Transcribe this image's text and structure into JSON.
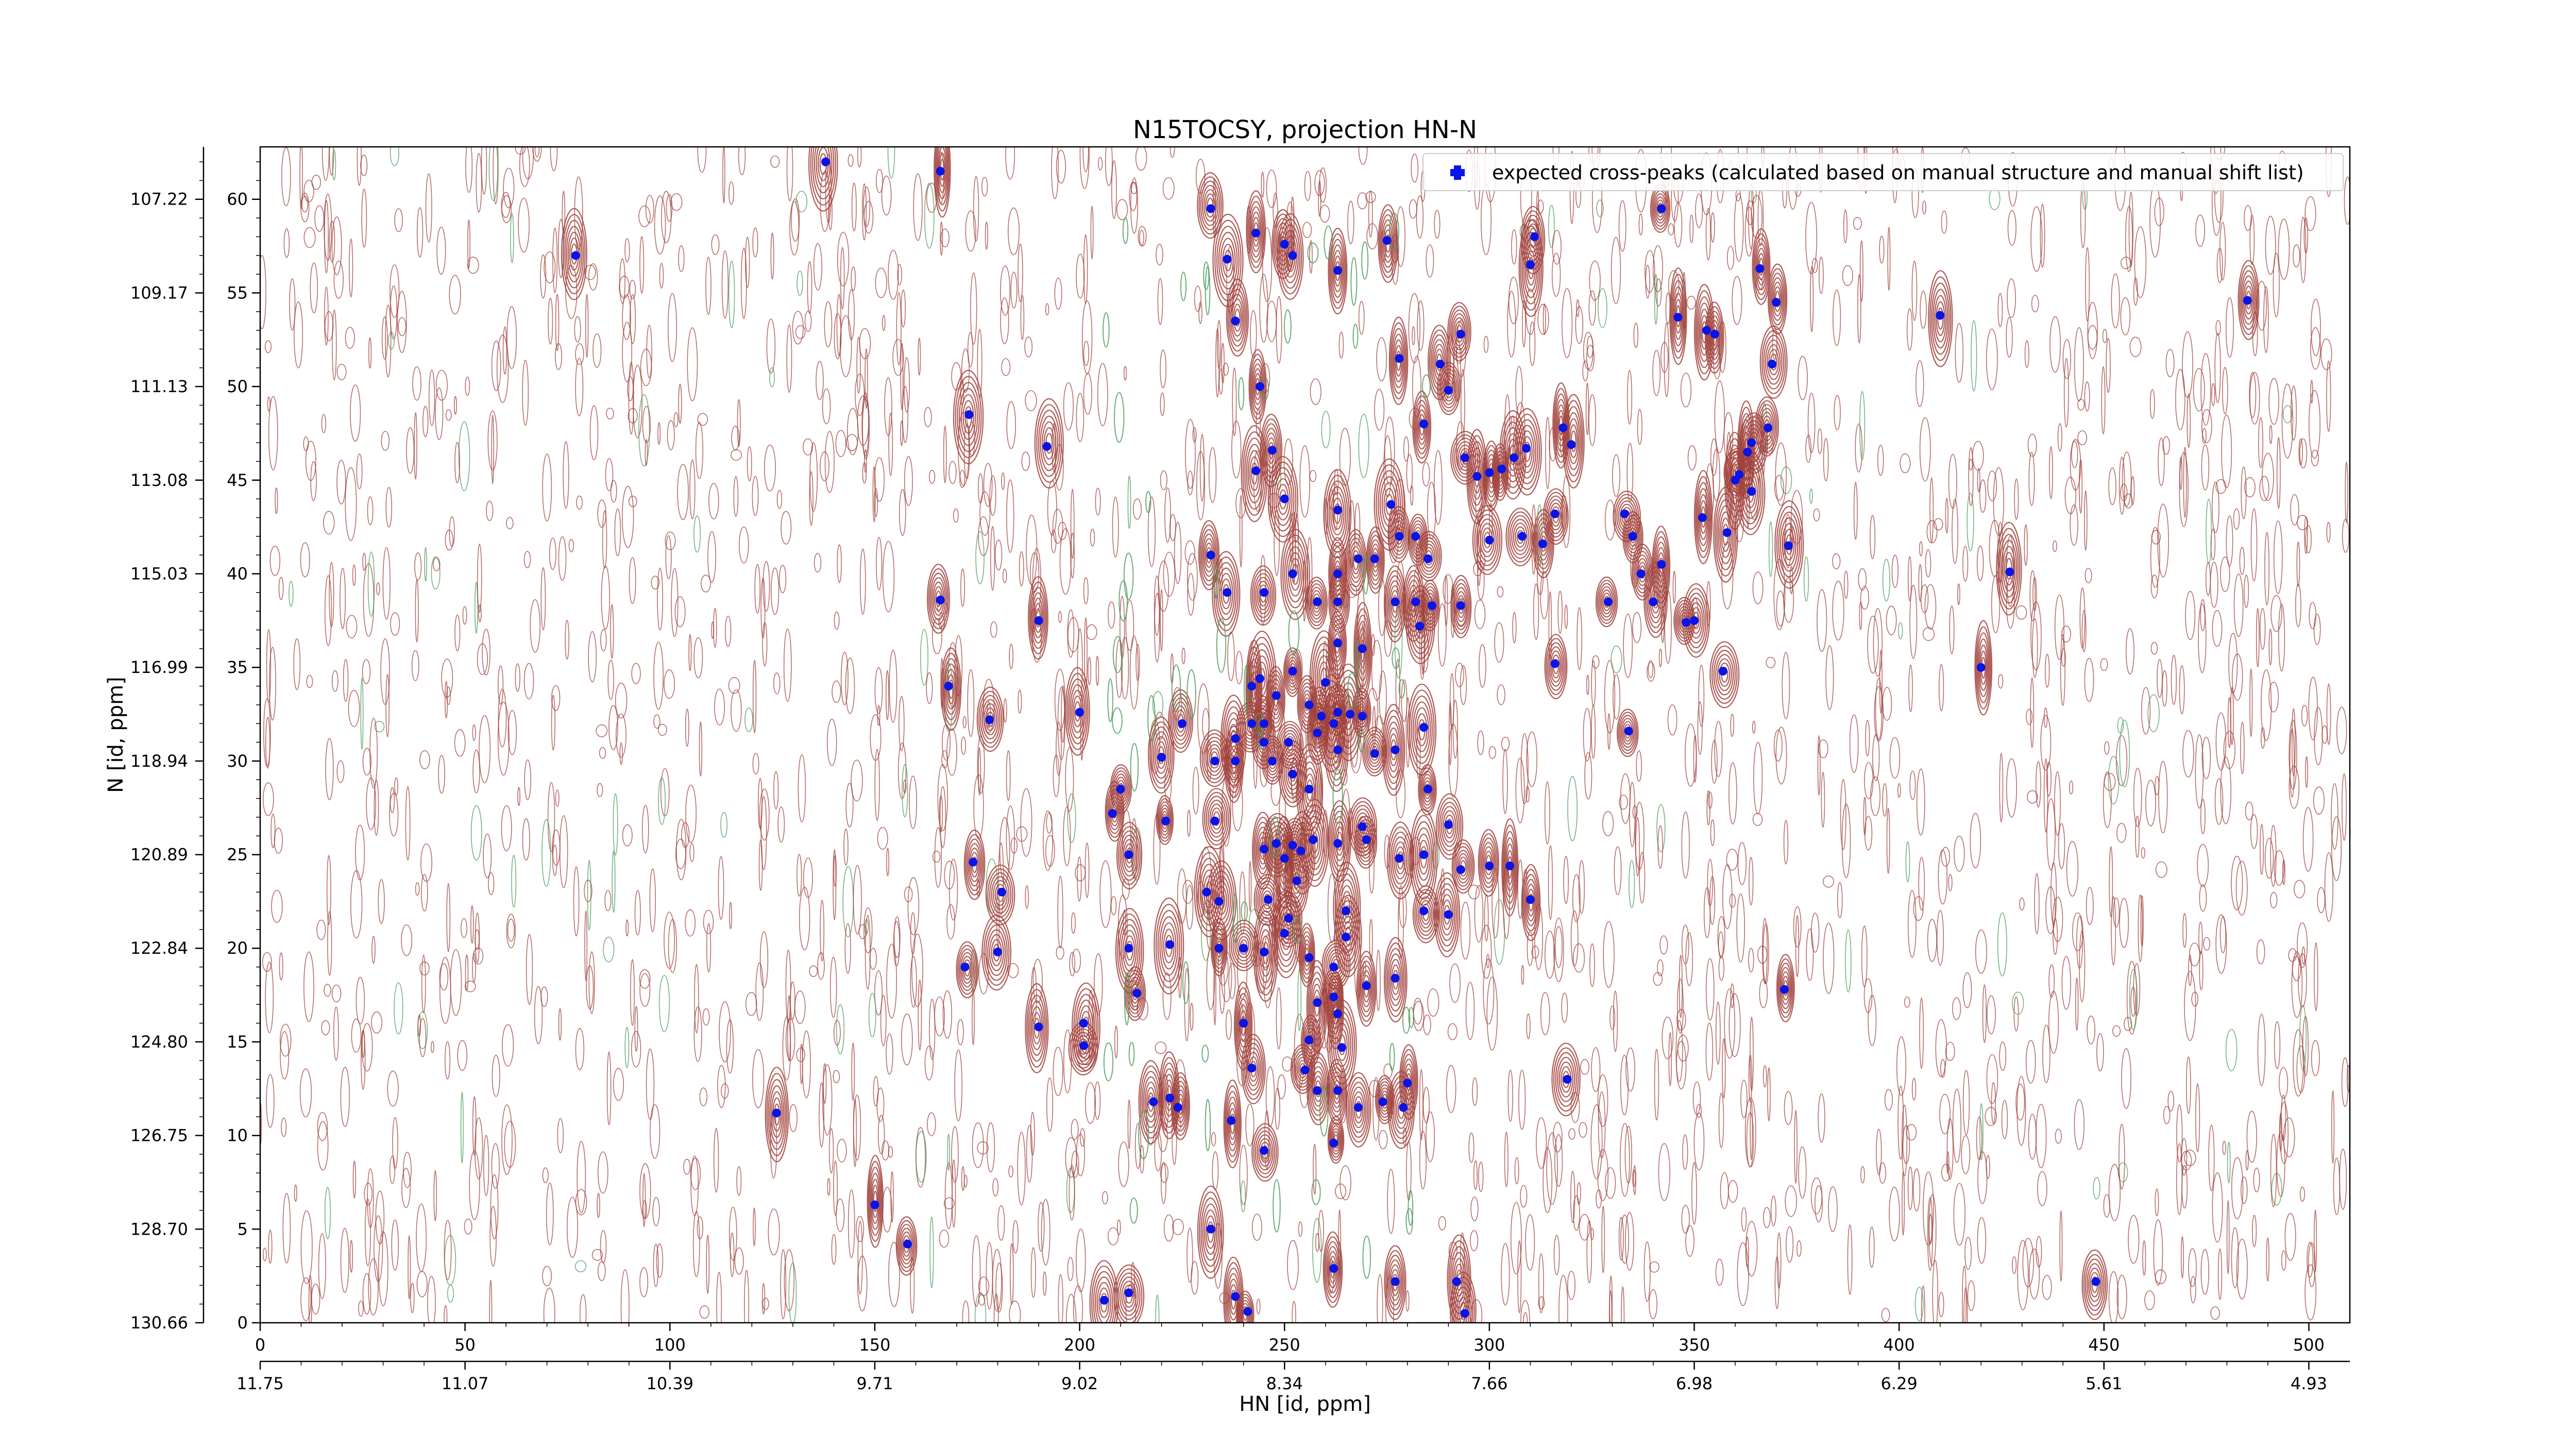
{
  "chart_data": {
    "type": "scatter",
    "title": "N15TOCSY, projection HN-N",
    "xlabel": "HN [id, ppm]",
    "ylabel": "N [id, ppm]",
    "xlim": [
      0,
      510
    ],
    "ylim": [
      0,
      62.8
    ],
    "x_ticks": [
      0,
      50,
      100,
      150,
      200,
      250,
      300,
      350,
      400,
      450,
      500
    ],
    "y_ticks": [
      0,
      5,
      10,
      15,
      20,
      25,
      30,
      35,
      40,
      45,
      50,
      55,
      60
    ],
    "secondary_x_ticks": [
      {
        "pos": 0,
        "label": "11.75"
      },
      {
        "pos": 50,
        "label": "11.07"
      },
      {
        "pos": 100,
        "label": "10.39"
      },
      {
        "pos": 150,
        "label": "9.71"
      },
      {
        "pos": 200,
        "label": "9.02"
      },
      {
        "pos": 250,
        "label": "8.34"
      },
      {
        "pos": 300,
        "label": "7.66"
      },
      {
        "pos": 350,
        "label": "6.98"
      },
      {
        "pos": 400,
        "label": "6.29"
      },
      {
        "pos": 450,
        "label": "5.61"
      },
      {
        "pos": 500,
        "label": "4.93"
      }
    ],
    "secondary_y_ticks": [
      {
        "pos": 0,
        "label": "130.66"
      },
      {
        "pos": 5,
        "label": "128.70"
      },
      {
        "pos": 10,
        "label": "126.75"
      },
      {
        "pos": 15,
        "label": "124.80"
      },
      {
        "pos": 20,
        "label": "122.84"
      },
      {
        "pos": 25,
        "label": "120.89"
      },
      {
        "pos": 30,
        "label": "118.94"
      },
      {
        "pos": 35,
        "label": "116.99"
      },
      {
        "pos": 40,
        "label": "115.03"
      },
      {
        "pos": 45,
        "label": "113.08"
      },
      {
        "pos": 50,
        "label": "111.13"
      },
      {
        "pos": 55,
        "label": "109.17"
      },
      {
        "pos": 60,
        "label": "107.22"
      }
    ],
    "legend": {
      "placement": "top-right"
    },
    "contour_colors": {
      "positive": "#a0403a",
      "negative": "#4a9a5a"
    },
    "marker_color": "#0a14e6",
    "series": [
      {
        "name": "expected cross-peaks (calculated based on manual structure and manual shift list)",
        "points": [
          [
            77,
            57
          ],
          [
            138,
            62
          ],
          [
            166,
            61.5
          ],
          [
            173,
            48.5
          ],
          [
            192,
            46.8
          ],
          [
            166,
            38.6
          ],
          [
            190,
            37.5
          ],
          [
            168,
            34
          ],
          [
            178,
            32.2
          ],
          [
            174,
            24.6
          ],
          [
            172,
            19
          ],
          [
            181,
            23
          ],
          [
            180,
            19.8
          ],
          [
            190,
            15.8
          ],
          [
            126,
            11.2
          ],
          [
            150,
            6.3
          ],
          [
            158,
            4.2
          ],
          [
            232,
            59.5
          ],
          [
            236,
            56.8
          ],
          [
            243,
            58.2
          ],
          [
            250,
            57.6
          ],
          [
            252,
            57
          ],
          [
            263,
            56.2
          ],
          [
            275,
            57.8
          ],
          [
            238,
            53.5
          ],
          [
            244,
            50
          ],
          [
            247,
            46.6
          ],
          [
            243,
            45.5
          ],
          [
            250,
            44
          ],
          [
            232,
            41
          ],
          [
            236,
            39
          ],
          [
            245,
            39
          ],
          [
            252,
            40
          ],
          [
            278,
            51.5
          ],
          [
            284,
            48
          ],
          [
            290,
            49.8
          ],
          [
            293,
            52.8
          ],
          [
            288,
            51.2
          ],
          [
            294,
            46.2
          ],
          [
            297,
            45.2
          ],
          [
            300,
            45.4
          ],
          [
            303,
            45.6
          ],
          [
            306,
            46.2
          ],
          [
            309,
            46.7
          ],
          [
            300,
            41.8
          ],
          [
            308,
            42
          ],
          [
            313,
            41.6
          ],
          [
            316,
            43.2
          ],
          [
            318,
            47.8
          ],
          [
            320,
            46.9
          ],
          [
            311,
            58
          ],
          [
            310,
            56.5
          ],
          [
            342,
            59.5
          ],
          [
            346,
            53.7
          ],
          [
            353,
            53
          ],
          [
            355,
            52.8
          ],
          [
            370,
            54.5
          ],
          [
            366,
            56.3
          ],
          [
            369,
            51.2
          ],
          [
            368,
            47.8
          ],
          [
            364,
            47
          ],
          [
            363,
            46.5
          ],
          [
            361,
            45.3
          ],
          [
            360,
            45
          ],
          [
            364,
            44.4
          ],
          [
            352,
            43
          ],
          [
            358,
            42.2
          ],
          [
            350,
            37.5
          ],
          [
            348,
            37.4
          ],
          [
            357,
            34.8
          ],
          [
            342,
            40.5
          ],
          [
            333,
            43.2
          ],
          [
            335,
            42
          ],
          [
            337,
            40
          ],
          [
            329,
            38.5
          ],
          [
            340,
            38.5
          ],
          [
            334,
            31.6
          ],
          [
            373,
            41.5
          ],
          [
            410,
            53.8
          ],
          [
            427,
            40.1
          ],
          [
            420,
            35
          ],
          [
            276,
            43.7
          ],
          [
            278,
            42
          ],
          [
            282,
            42
          ],
          [
            285,
            40.8
          ],
          [
            272,
            40.8
          ],
          [
            268,
            40.8
          ],
          [
            263,
            40
          ],
          [
            258,
            38.5
          ],
          [
            263,
            38.5
          ],
          [
            277,
            38.5
          ],
          [
            282,
            38.5
          ],
          [
            283,
            37.2
          ],
          [
            269,
            36
          ],
          [
            263,
            36.3
          ],
          [
            286,
            38.3
          ],
          [
            293,
            38.3
          ],
          [
            263,
            43.4
          ],
          [
            316,
            35.2
          ],
          [
            260,
            34.2
          ],
          [
            252,
            34.8
          ],
          [
            244,
            34.4
          ],
          [
            242,
            34
          ],
          [
            248,
            33.5
          ],
          [
            256,
            33
          ],
          [
            259,
            32.4
          ],
          [
            263,
            32.6
          ],
          [
            266,
            32.5
          ],
          [
            245,
            32
          ],
          [
            242,
            32
          ],
          [
            238,
            31.2
          ],
          [
            245,
            31
          ],
          [
            251,
            31
          ],
          [
            258,
            31.5
          ],
          [
            262,
            32
          ],
          [
            269,
            32.4
          ],
          [
            272,
            30.4
          ],
          [
            277,
            30.6
          ],
          [
            284,
            31.8
          ],
          [
            285,
            28.5
          ],
          [
            290,
            26.6
          ],
          [
            263,
            30.6
          ],
          [
            256,
            28.5
          ],
          [
            252,
            29.3
          ],
          [
            247,
            30
          ],
          [
            233,
            30
          ],
          [
            238,
            30
          ],
          [
            220,
            30.2
          ],
          [
            225,
            32
          ],
          [
            200,
            32.6
          ],
          [
            210,
            28.5
          ],
          [
            208,
            27.2
          ],
          [
            212,
            25
          ],
          [
            221,
            26.8
          ],
          [
            233,
            26.8
          ],
          [
            245,
            25.3
          ],
          [
            248,
            25.6
          ],
          [
            252,
            25.5
          ],
          [
            254,
            25.2
          ],
          [
            250,
            24.8
          ],
          [
            257,
            25.8
          ],
          [
            263,
            25.6
          ],
          [
            269,
            26.5
          ],
          [
            270,
            25.8
          ],
          [
            278,
            24.8
          ],
          [
            284,
            25
          ],
          [
            300,
            24.4
          ],
          [
            305,
            24.4
          ],
          [
            310,
            22.6
          ],
          [
            293,
            24.2
          ],
          [
            231,
            23
          ],
          [
            234,
            22.5
          ],
          [
            222,
            20.2
          ],
          [
            234,
            20
          ],
          [
            240,
            20
          ],
          [
            245,
            19.8
          ],
          [
            250,
            20.8
          ],
          [
            256,
            19.5
          ],
          [
            262,
            19
          ],
          [
            265,
            20.6
          ],
          [
            265,
            22
          ],
          [
            284,
            22
          ],
          [
            290,
            21.8
          ],
          [
            262,
            17.4
          ],
          [
            258,
            17.1
          ],
          [
            270,
            18
          ],
          [
            264,
            14.7
          ],
          [
            263,
            12.4
          ],
          [
            268,
            11.5
          ],
          [
            274,
            11.8
          ],
          [
            279,
            11.5
          ],
          [
            280,
            12.8
          ],
          [
            277,
            18.4
          ],
          [
            263,
            16.5
          ],
          [
            256,
            15.1
          ],
          [
            255,
            13.5
          ],
          [
            258,
            12.4
          ],
          [
            262,
            9.6
          ],
          [
            245,
            9.2
          ],
          [
            212,
            20
          ],
          [
            214,
            17.6
          ],
          [
            201,
            16
          ],
          [
            201,
            14.8
          ],
          [
            222,
            12
          ],
          [
            218,
            11.8
          ],
          [
            224,
            11.5
          ],
          [
            240,
            16
          ],
          [
            242,
            13.6
          ],
          [
            237,
            10.8
          ],
          [
            372,
            17.8
          ],
          [
            319,
            13
          ],
          [
            232,
            5
          ],
          [
            238,
            1.4
          ],
          [
            241,
            0.6
          ],
          [
            262,
            2.9
          ],
          [
            277,
            2.2
          ],
          [
            292,
            2.2
          ],
          [
            294,
            0.5
          ],
          [
            206,
            1.2
          ],
          [
            212,
            1.6
          ],
          [
            448,
            2.2
          ],
          [
            485,
            54.6
          ],
          [
            246,
            22.6
          ],
          [
            253,
            23.6
          ],
          [
            251,
            21.6
          ]
        ]
      }
    ]
  }
}
